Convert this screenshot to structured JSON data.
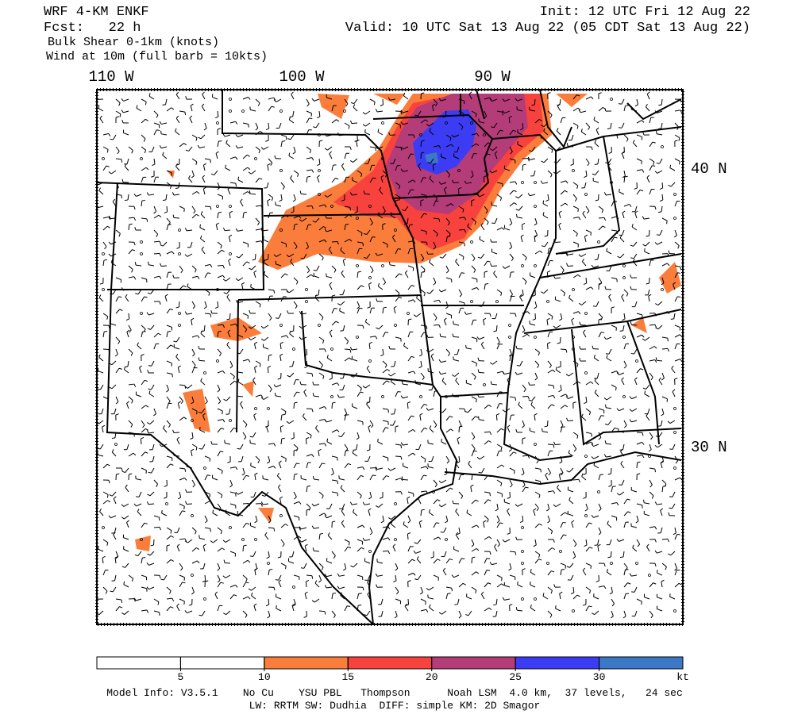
{
  "header": {
    "model": "WRF 4-KM ENKF",
    "forecast": "Fcst:   22 h",
    "field": "Bulk Shear 0-1km (knots)",
    "wind": "Wind at 10m (full barb = 10kts)",
    "init": "Init: 12 UTC Fri 12 Aug 22",
    "valid": "Valid: 10 UTC Sat 13 Aug 22 (05 CDT Sat 13 Aug 22)"
  },
  "map": {
    "longitude_labels": [
      "110 W",
      "100 W",
      "90 W"
    ],
    "latitude_labels": [
      "40 N",
      "30 N"
    ]
  },
  "colorbar": {
    "colors": [
      "#ffffff",
      "#ffffff",
      "#fb7d3c",
      "#f8423e",
      "#b43c78",
      "#3c3cf5",
      "#3c78c8"
    ],
    "ticks": [
      5,
      10,
      15,
      20,
      25,
      30
    ],
    "unit": "kt"
  },
  "footer": {
    "line1": "Model Info: V3.5.1    No Cu    YSU PBL   Thompson      Noah LSM  4.0 km,  37 levels,   24 sec",
    "line2": "LW: RRTM SW: Dudhia  DIFF: simple KM: 2D Smagor"
  }
}
